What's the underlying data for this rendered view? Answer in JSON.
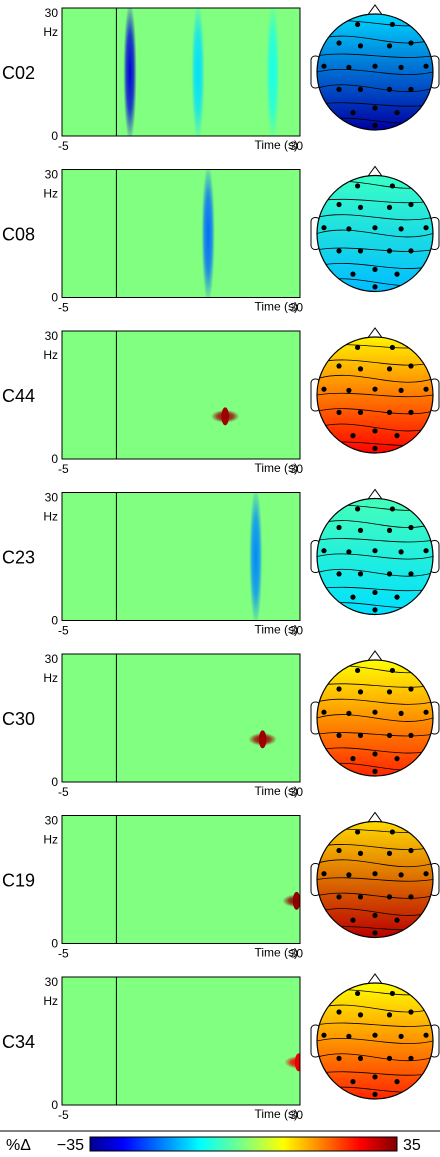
{
  "figure": {
    "colorbar": {
      "unit_label": "%Δ",
      "min_label": "−35",
      "max_label": "35",
      "min": -35,
      "max": 35
    }
  },
  "chart_data": [
    {
      "type": "heatmap",
      "component": "C02",
      "xlabel": "Time (s)",
      "ylabel": "Hz",
      "x_ticks": [
        "-5",
        "30"
      ],
      "y_ticks": [
        "0",
        "30"
      ],
      "xlim": [
        -5,
        30
      ],
      "ylim": [
        0,
        30
      ],
      "event_lines_s": [
        3,
        30
      ],
      "features": [
        {
          "t": 5,
          "f": 18,
          "value": -30,
          "note": "band"
        },
        {
          "t": 15,
          "f": 26,
          "value": -12,
          "note": "band"
        },
        {
          "t": 26,
          "f": 26,
          "value": -8,
          "note": "band"
        }
      ],
      "topomap_mean": -28
    },
    {
      "type": "heatmap",
      "component": "C08",
      "xlabel": "Time (s)",
      "ylabel": "Hz",
      "x_ticks": [
        "-5",
        "30"
      ],
      "y_ticks": [
        "0",
        "30"
      ],
      "xlim": [
        -5,
        30
      ],
      "ylim": [
        0,
        30
      ],
      "event_lines_s": [
        3,
        30
      ],
      "features": [
        {
          "t": 16.5,
          "f": 22,
          "value": -20,
          "note": "band"
        }
      ],
      "topomap_mean": -12
    },
    {
      "type": "heatmap",
      "component": "C44",
      "xlabel": "Time (s)",
      "ylabel": "Hz",
      "x_ticks": [
        "-5",
        "30"
      ],
      "y_ticks": [
        "0",
        "30"
      ],
      "xlim": [
        -5,
        30
      ],
      "ylim": [
        0,
        30
      ],
      "event_lines_s": [
        3,
        30
      ],
      "features": [
        {
          "t": 19,
          "f": 10,
          "value": 33,
          "note": "peak"
        }
      ],
      "topomap_mean": 22
    },
    {
      "type": "heatmap",
      "component": "C23",
      "xlabel": "Time (s)",
      "ylabel": "Hz",
      "x_ticks": [
        "-5",
        "30"
      ],
      "y_ticks": [
        "0",
        "30"
      ],
      "xlim": [
        -5,
        30
      ],
      "ylim": [
        0,
        30
      ],
      "event_lines_s": [
        3,
        30
      ],
      "features": [
        {
          "t": 23.5,
          "f": 15,
          "value": -18,
          "note": "band"
        }
      ],
      "topomap_mean": -10
    },
    {
      "type": "heatmap",
      "component": "C30",
      "xlabel": "Time (s)",
      "ylabel": "Hz",
      "x_ticks": [
        "-5",
        "30"
      ],
      "y_ticks": [
        "0",
        "30"
      ],
      "xlim": [
        -5,
        30
      ],
      "ylim": [
        0,
        30
      ],
      "event_lines_s": [
        3,
        30
      ],
      "features": [
        {
          "t": 24.5,
          "f": 10,
          "value": 33,
          "note": "peak"
        }
      ],
      "topomap_mean": 20
    },
    {
      "type": "heatmap",
      "component": "C19",
      "xlabel": "Time (s)",
      "ylabel": "Hz",
      "x_ticks": [
        "-5",
        "30"
      ],
      "y_ticks": [
        "0",
        "30"
      ],
      "xlim": [
        -5,
        30
      ],
      "ylim": [
        0,
        30
      ],
      "event_lines_s": [
        3,
        30
      ],
      "features": [
        {
          "t": 29.5,
          "f": 10,
          "value": 34,
          "note": "peak"
        }
      ],
      "topomap_mean": 26
    },
    {
      "type": "heatmap",
      "component": "C34",
      "xlabel": "Time (s)",
      "ylabel": "Hz",
      "x_ticks": [
        "-5",
        "30"
      ],
      "y_ticks": [
        "0",
        "30"
      ],
      "xlim": [
        -5,
        30
      ],
      "ylim": [
        0,
        30
      ],
      "event_lines_s": [
        3,
        30
      ],
      "features": [
        {
          "t": 29.8,
          "f": 10,
          "value": 28,
          "note": "peak"
        }
      ],
      "topomap_mean": 20
    }
  ]
}
